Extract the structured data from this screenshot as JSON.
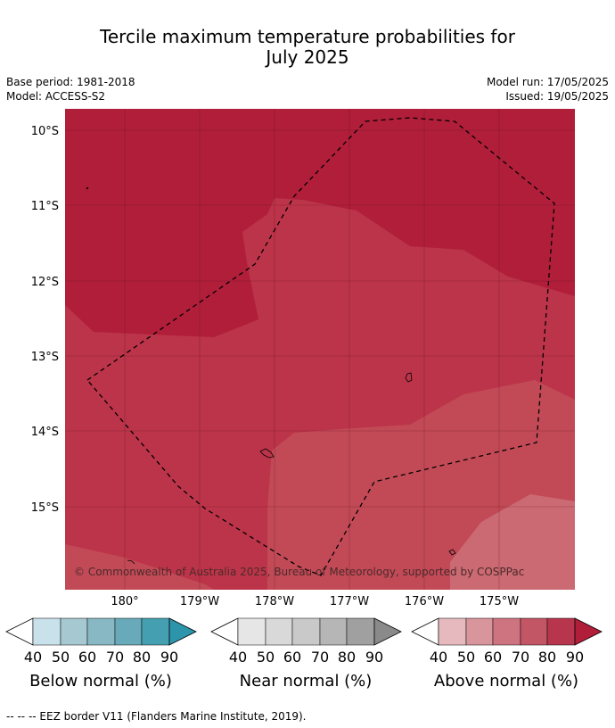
{
  "title_line1": "Tercile maximum temperature probabilities for",
  "title_line2": "July 2025",
  "meta": {
    "base_period": "Base period: 1981-2018",
    "model": "Model: ACCESS-S2",
    "model_run": "Model run: 17/05/2025",
    "issued": "Issued: 19/05/2025"
  },
  "map": {
    "lat_labels": [
      "10°S",
      "11°S",
      "12°S",
      "13°S",
      "14°S",
      "15°S"
    ],
    "lon_labels": [
      "180°",
      "179°W",
      "178°W",
      "177°W",
      "176°W",
      "175°W"
    ],
    "copyright": "© Commonwealth of Australia 2025, Bureau of Meteorology, supported by COSPPac",
    "colors": {
      "above_90": "#b01e3a",
      "above_80": "#bc3449",
      "above_70": "#c24a57",
      "above_60": "#cb6a73"
    }
  },
  "colorbars": [
    {
      "label": "Below normal (%)",
      "ticks": [
        "40",
        "50",
        "60",
        "70",
        "80",
        "90"
      ],
      "colors": [
        "#ffffff",
        "#c8e1ea",
        "#a6c8d0",
        "#88b8c4",
        "#68aab9",
        "#44a0b0",
        "#2c94ab"
      ]
    },
    {
      "label": "Near normal (%)",
      "ticks": [
        "40",
        "50",
        "60",
        "70",
        "80",
        "90"
      ],
      "colors": [
        "#ffffff",
        "#e6e6e6",
        "#d9d9d9",
        "#c9c9c9",
        "#b6b6b6",
        "#a0a0a0",
        "#8a8a8a"
      ]
    },
    {
      "label": "Above normal (%)",
      "ticks": [
        "40",
        "50",
        "60",
        "70",
        "80",
        "90"
      ],
      "colors": [
        "#ffffff",
        "#e5b9bd",
        "#d9959c",
        "#cd7480",
        "#c25664",
        "#b8364d",
        "#b01e3a"
      ]
    }
  ],
  "footer": "--  --  -- EEZ border V11 (Flanders Marine Institute, 2019)."
}
